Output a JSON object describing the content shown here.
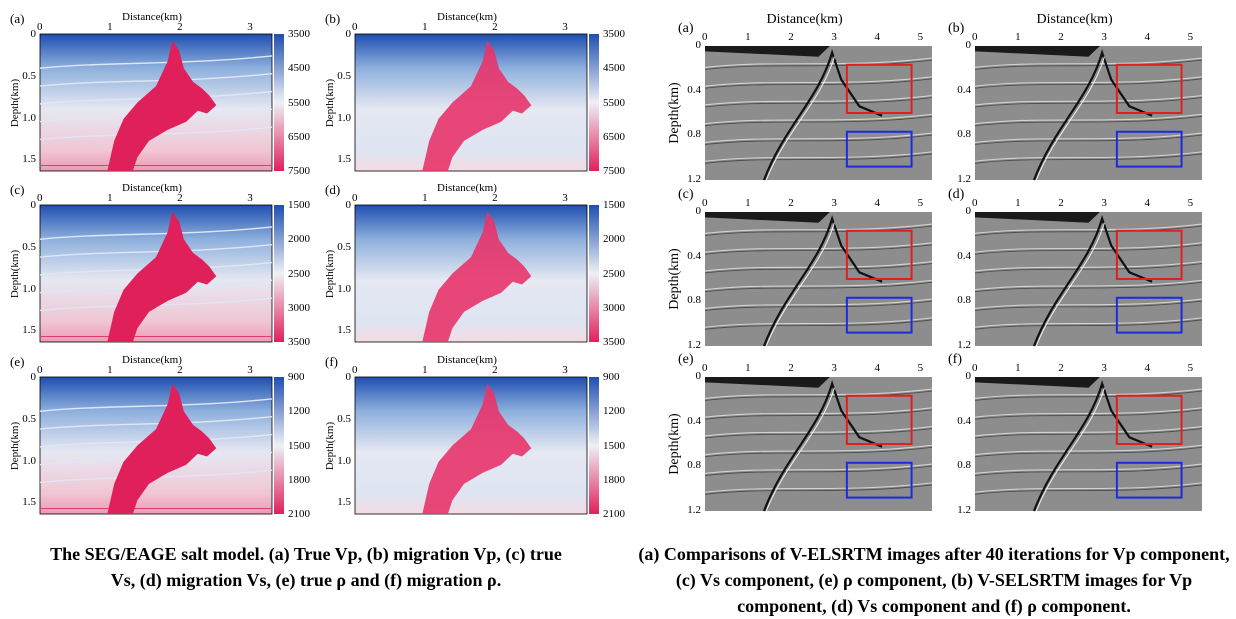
{
  "left_figure": {
    "x_axis_title": "Distance(km)",
    "y_axis_title": "Depth(km)",
    "x_ticks": [
      "0",
      "1",
      "2",
      "3"
    ],
    "y_ticks": [
      "0",
      "0.5",
      "1.0",
      "1.5"
    ],
    "panel_labels": [
      "(a)",
      "(b)",
      "(c)",
      "(d)",
      "(e)",
      "(f)"
    ],
    "colorbars": [
      {
        "ticks": [
          "3500",
          "4500",
          "5500",
          "6500",
          "7500"
        ]
      },
      {
        "ticks": [
          "1500",
          "2000",
          "2500",
          "3000",
          "3500"
        ]
      },
      {
        "ticks": [
          "900",
          "1200",
          "1500",
          "1800",
          "2100"
        ]
      }
    ],
    "colors": {
      "low": "#1f4fb0",
      "mid": "#eef0f6",
      "high": "#e0205a"
    }
  },
  "right_figure": {
    "x_axis_title": "Distance(km)",
    "y_axis_title": "Depth(km)",
    "x_ticks": [
      "0",
      "1",
      "2",
      "3",
      "4",
      "5"
    ],
    "y_ticks": [
      "0",
      "0.4",
      "0.8",
      "1.2"
    ],
    "panel_labels": [
      "(a)",
      "(b)",
      "(c)",
      "(d)",
      "(e)",
      "(f)"
    ],
    "box_colors": {
      "upper": "#e02020",
      "lower": "#1a2be0"
    }
  },
  "captions": {
    "left": "The SEG/EAGE salt model. (a) True Vp, (b) migration Vp, (c) true Vs, (d) migration Vs, (e) true ρ and (f) migration ρ.",
    "right": "(a) Comparisons of V-ELSRTM images after 40 iterations for Vp component, (c) Vs component, (e) ρ component, (b) V-SELSRTM images for Vp component, (d) Vs component and (f) ρ component."
  }
}
